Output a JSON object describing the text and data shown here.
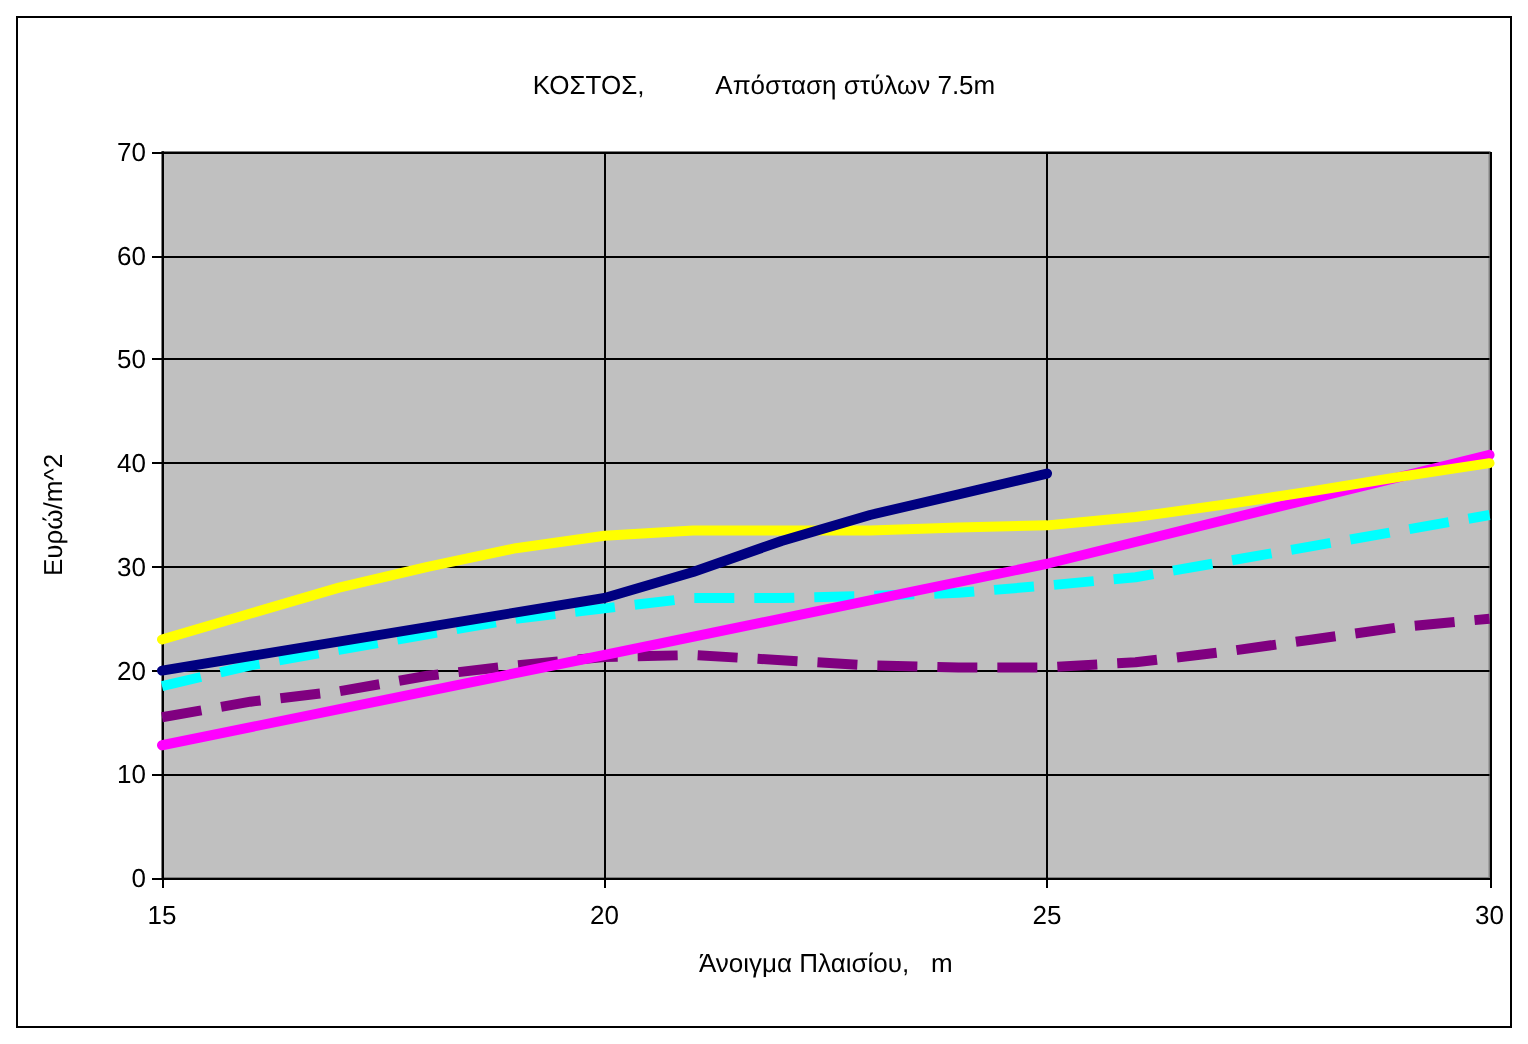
{
  "chart_data": {
    "type": "line",
    "title": "ΚΟΣΤΟΣ,          Απόσταση στύλων 7.5m",
    "xlabel": "Άνοιγμα Πλαισίου,   m",
    "ylabel": "Ευρώ/m^2",
    "xlim": [
      15,
      30
    ],
    "xticks": [
      15,
      20,
      25,
      30
    ],
    "ylim": [
      0,
      70
    ],
    "yticks": [
      0,
      10,
      20,
      30,
      40,
      50,
      60,
      70
    ],
    "grid": true,
    "marker": "none",
    "series": [
      {
        "color": "#800080",
        "line_style": "dashed",
        "x": [
          15,
          16,
          17,
          18,
          19,
          20,
          21,
          22,
          23,
          24,
          25,
          26,
          27,
          28,
          29,
          30
        ],
        "values": [
          15.5,
          17,
          18,
          19.5,
          20.5,
          21.3,
          21.5,
          21,
          20.5,
          20.3,
          20.3,
          20.8,
          21.8,
          23,
          24.2,
          25
        ]
      },
      {
        "color": "#00ffff",
        "line_style": "dashed",
        "x": [
          15,
          16,
          17,
          18,
          19,
          20,
          21,
          22,
          23,
          24,
          25,
          26,
          27,
          28,
          29,
          30
        ],
        "values": [
          18.5,
          20.5,
          22,
          23.5,
          25,
          26,
          27,
          27,
          27.2,
          27.5,
          28.2,
          29,
          30.5,
          32,
          33.5,
          35
        ]
      },
      {
        "color": "#ff00ff",
        "line_style": "solid",
        "x": [
          15,
          20,
          25,
          30
        ],
        "values": [
          12.8,
          21.5,
          30.3,
          40.8
        ]
      },
      {
        "color": "#ffff00",
        "line_style": "solid",
        "x": [
          15,
          16,
          17,
          18,
          19,
          20,
          21,
          22,
          23,
          24,
          25,
          26,
          27,
          28,
          29,
          30
        ],
        "values": [
          23,
          25.5,
          28,
          30,
          31.8,
          33,
          33.5,
          33.5,
          33.5,
          33.8,
          34,
          34.8,
          36,
          37.3,
          38.7,
          40
        ]
      },
      {
        "color": "#000080",
        "line_style": "solid",
        "x": [
          15,
          20,
          21,
          22,
          23,
          24,
          25
        ],
        "values": [
          20,
          27,
          29.5,
          32.5,
          35,
          37,
          39
        ]
      }
    ]
  }
}
